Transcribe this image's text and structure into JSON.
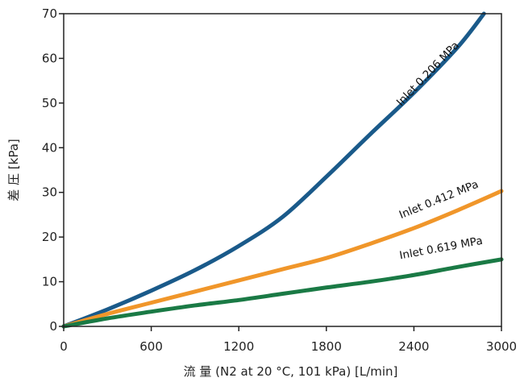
{
  "chart_data": {
    "type": "line",
    "xlabel": "流 量 (N2 at 20 °C, 101 kPa) [L/min]",
    "ylabel": "差 圧 [kPa]",
    "xlim": [
      0,
      3000
    ],
    "ylim": [
      0,
      70
    ],
    "xticks": [
      0,
      600,
      1200,
      1800,
      2400,
      3000
    ],
    "yticks": [
      0,
      10,
      20,
      30,
      40,
      50,
      60,
      70
    ],
    "grid": false,
    "series": [
      {
        "name": "Inlet 0.206 MPa",
        "color": "#1a5a8a",
        "x": [
          0,
          300,
          600,
          900,
          1200,
          1500,
          1800,
          2100,
          2400,
          2700,
          2880
        ],
        "y": [
          0,
          3.8,
          8,
          12.6,
          18,
          24.5,
          33.5,
          43,
          52.3,
          62.5,
          70
        ]
      },
      {
        "name": "Inlet 0.412 MPa",
        "color": "#f0962a",
        "x": [
          0,
          300,
          600,
          900,
          1200,
          1500,
          1800,
          2100,
          2400,
          2700,
          3000
        ],
        "y": [
          0,
          2.8,
          5.3,
          7.8,
          10.3,
          12.8,
          15.3,
          18.5,
          22,
          26,
          30.3
        ]
      },
      {
        "name": "Inlet 0.619 MPa",
        "color": "#1a7a45",
        "x": [
          0,
          300,
          600,
          900,
          1200,
          1500,
          1800,
          2100,
          2400,
          2700,
          3000
        ],
        "y": [
          0,
          1.8,
          3.3,
          4.7,
          5.9,
          7.3,
          8.7,
          10,
          11.5,
          13.3,
          15
        ]
      }
    ]
  }
}
